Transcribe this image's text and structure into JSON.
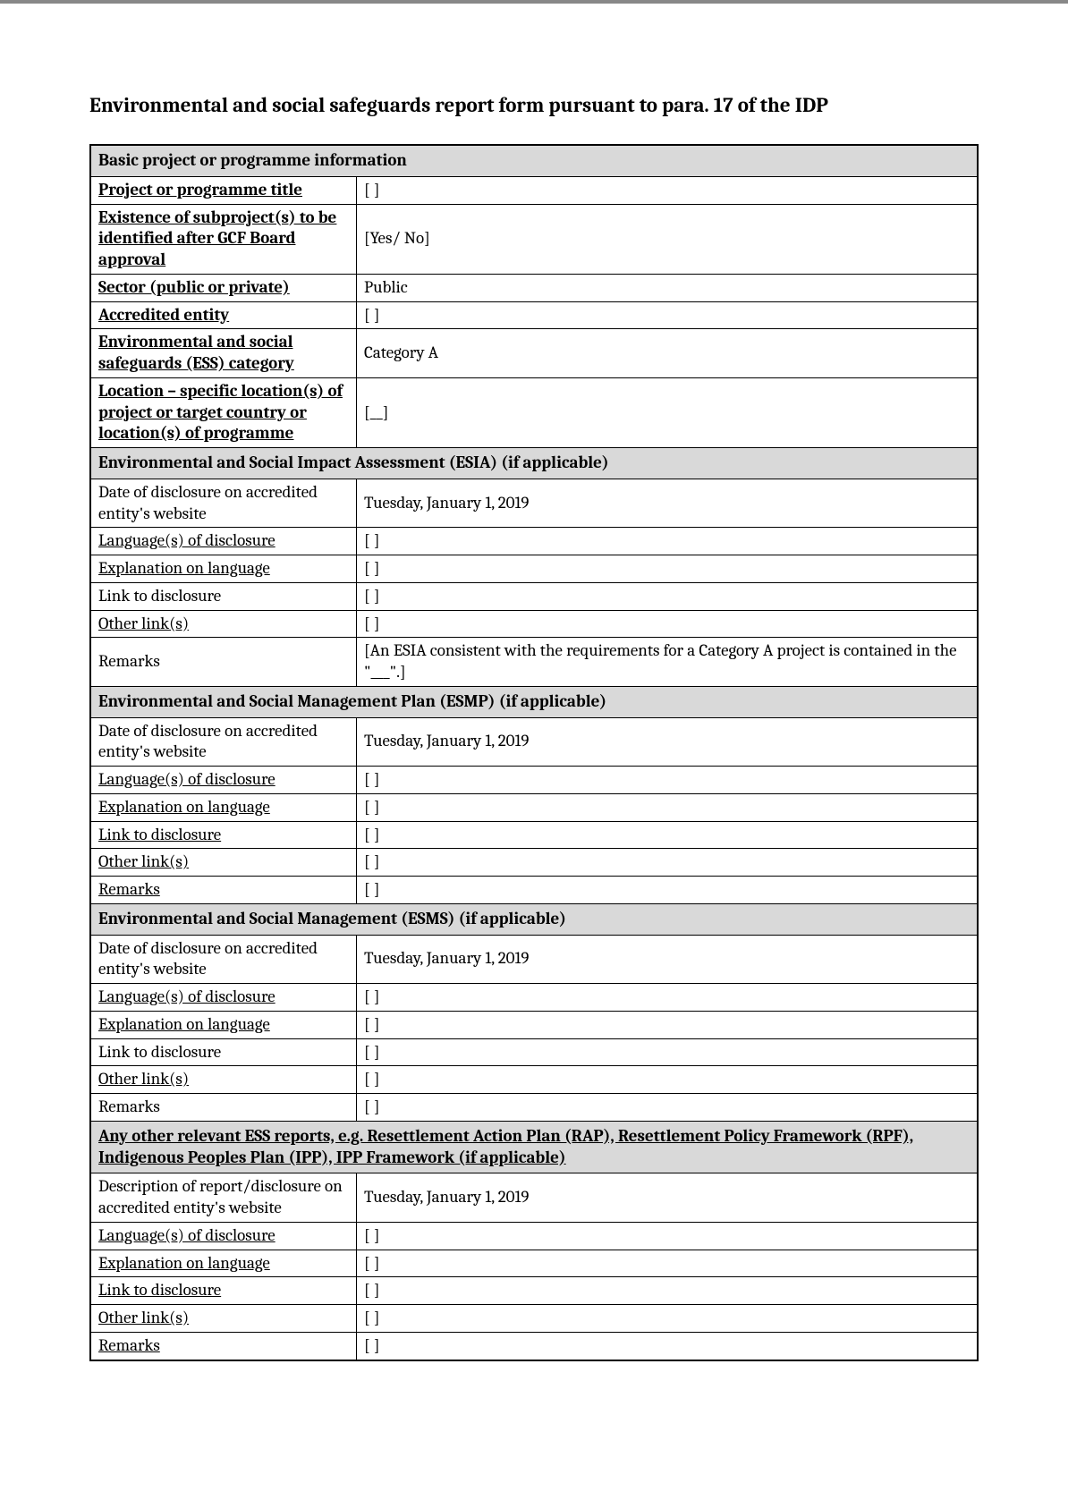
{
  "title": "Environmental and social safeguards report form pursuant to para. 17 of the IDP",
  "sections": {
    "basic": {
      "header": "Basic project or programme information",
      "rows": {
        "project_title": {
          "label": "Project or programme title",
          "value": "[   ]"
        },
        "subproject": {
          "label": "Existence of subproject(s) to be identified after GCF Board approval",
          "value": "[Yes/ No]"
        },
        "sector": {
          "label": "Sector (public or private)",
          "value": "Public"
        },
        "entity": {
          "label": "Accredited entity",
          "value": "[   ]"
        },
        "ess_cat": {
          "label": "Environmental and social safeguards (ESS) category",
          "value": "Category A"
        },
        "location": {
          "label": "Location – specific location(s) of project or target country or location(s) of programme",
          "value": "[__]"
        }
      }
    },
    "esia": {
      "header": "Environmental and Social Impact Assessment (ESIA) (if applicable)",
      "rows": {
        "date": {
          "label": "Date of disclosure on accredited entity's website",
          "value": "Tuesday, January 1, 2019"
        },
        "lang": {
          "label": "Language(s) of disclosure",
          "value": "[   ]"
        },
        "explain": {
          "label": "Explanation on language",
          "value": "[   ]"
        },
        "link": {
          "label": "Link to disclosure",
          "value": "[   ]"
        },
        "other": {
          "label": "Other link(s)",
          "value": "[   ]"
        },
        "remarks": {
          "label": "Remarks",
          "value": "[An ESIA consistent with the requirements for a Category A project is contained in the \"___\".]"
        }
      }
    },
    "esmp": {
      "header": "Environmental and Social Management Plan (ESMP) (if applicable)",
      "rows": {
        "date": {
          "label": "Date of disclosure on accredited entity's website",
          "value": "Tuesday, January 1, 2019"
        },
        "lang": {
          "label": "Language(s) of disclosure",
          "value": "[   ]"
        },
        "explain": {
          "label": "Explanation on language",
          "value": "[   ]"
        },
        "link": {
          "label": "Link to disclosure",
          "value": "[   ]"
        },
        "other": {
          "label": "Other link(s)",
          "value": "[   ]"
        },
        "remarks": {
          "label": "Remarks",
          "value": "[   ]"
        }
      }
    },
    "esms": {
      "header": "Environmental and Social Management (ESMS) (if applicable)",
      "rows": {
        "date": {
          "label": "Date of disclosure on accredited entity's website",
          "value": "Tuesday, January 1, 2019"
        },
        "lang": {
          "label": "Language(s) of disclosure",
          "value": "[   ]"
        },
        "explain": {
          "label": "Explanation on language",
          "value": "[   ]"
        },
        "link": {
          "label": "Link to disclosure",
          "value": "[   ]"
        },
        "other": {
          "label": "Other link(s)",
          "value": "[   ]"
        },
        "remarks": {
          "label": "Remarks",
          "value": "[   ]"
        }
      }
    },
    "other_ess": {
      "header": "Any other relevant ESS reports, e.g. Resettlement Action Plan (RAP), Resettlement Policy Framework (RPF), Indigenous Peoples Plan (IPP), IPP Framework (if applicable)",
      "rows": {
        "desc": {
          "label": "Description of report/disclosure on accredited entity's website",
          "value": "Tuesday, January 1, 2019"
        },
        "lang": {
          "label": "Language(s) of disclosure",
          "value": "[   ]"
        },
        "explain": {
          "label": "Explanation on language",
          "value": "[   ]"
        },
        "link": {
          "label": "Link to disclosure",
          "value": "[   ]"
        },
        "other": {
          "label": "Other link(s)",
          "value": "[   ]"
        },
        "remarks": {
          "label": "Remarks",
          "value": "[   ]"
        }
      }
    }
  }
}
